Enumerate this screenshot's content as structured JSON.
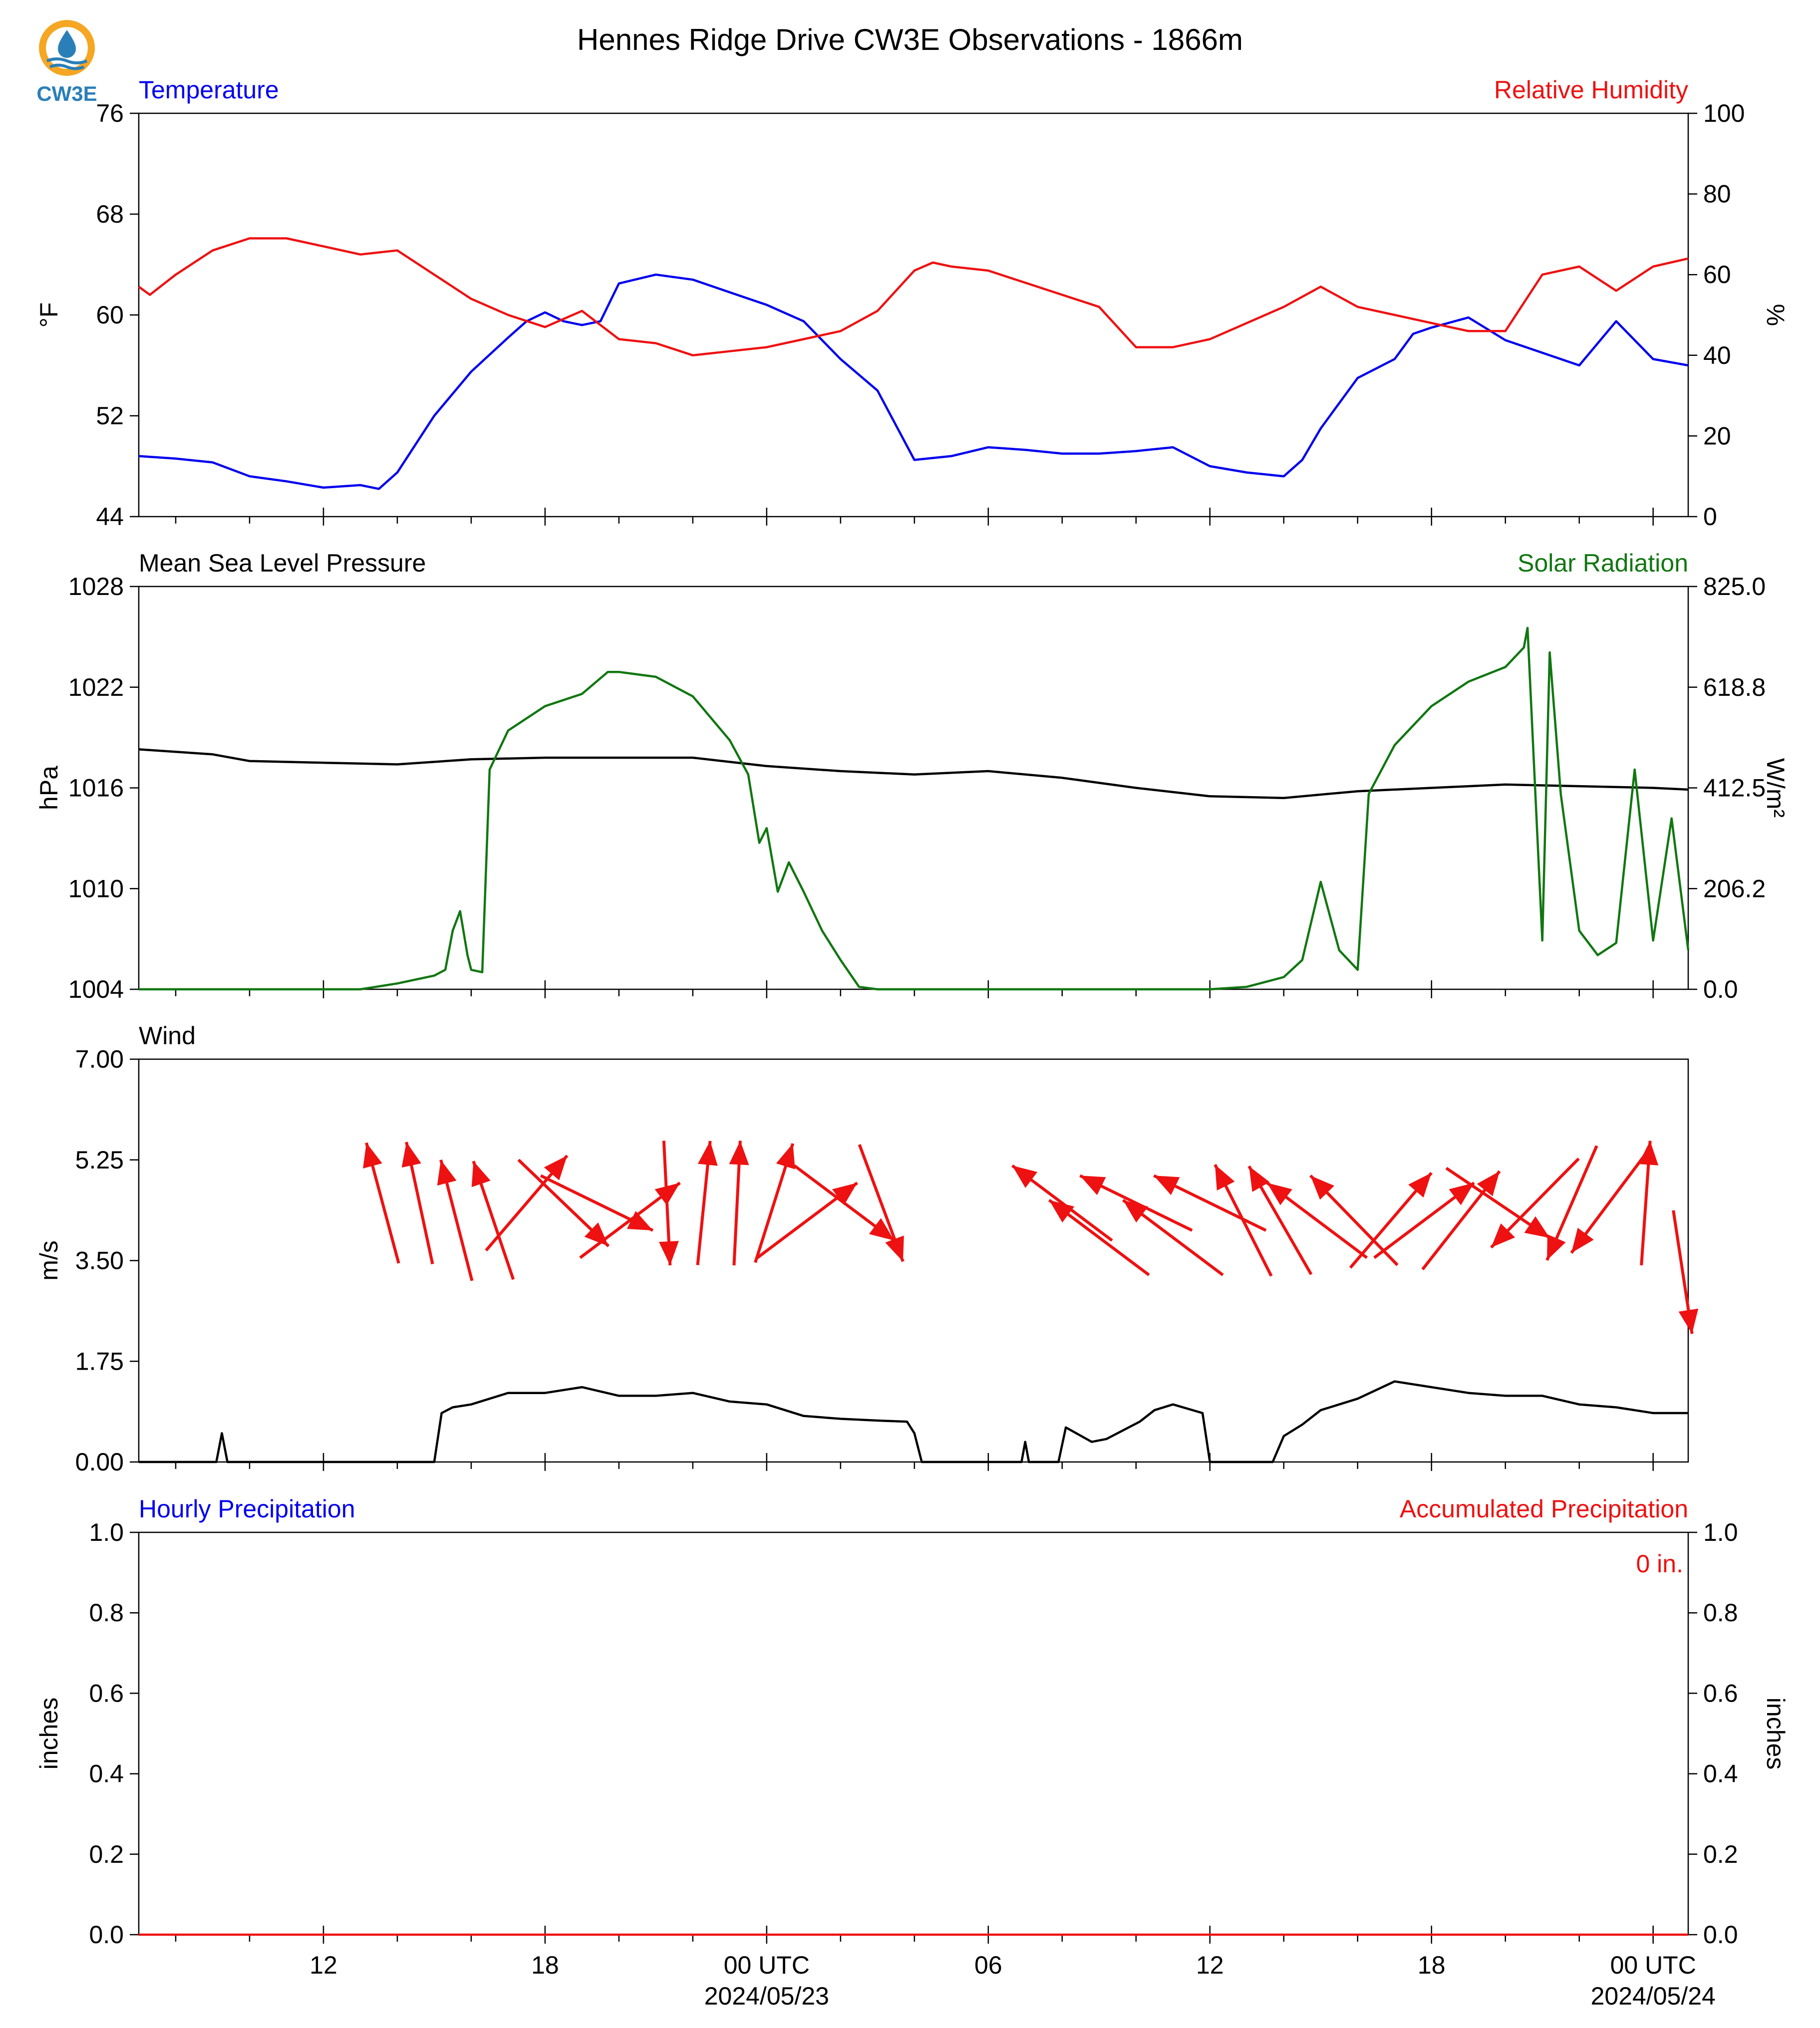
{
  "title": "Hennes Ridge Drive CW3E Observations - 1866m",
  "logo": {
    "text": "CW3E",
    "colors": {
      "ring": "#f5a623",
      "drop": "#2a7fb8",
      "waves": "#2a7fb8"
    }
  },
  "colors": {
    "blue": "#0000ee",
    "red": "#ee1111",
    "green": "#117711",
    "black": "#000000"
  },
  "x_axis": {
    "tick_labels": [
      "12",
      "18",
      "00 UTC",
      "06",
      "12",
      "18",
      "00 UTC"
    ],
    "tick_hours": [
      12,
      18,
      24,
      30,
      36,
      42,
      48
    ],
    "date_labels": [
      "2024/05/23",
      "2024/05/24"
    ],
    "date_hours": [
      24,
      48
    ],
    "minor_tick_hours": [
      8,
      10,
      14,
      16,
      20,
      22,
      26,
      28,
      32,
      34,
      38,
      40,
      44,
      46
    ],
    "range_hours": [
      7,
      48.95
    ],
    "note": "hours measured from 2024-05-22 00 UTC"
  },
  "chart_data": [
    {
      "type": "line",
      "panel": "temperature-humidity",
      "left_label": "Temperature",
      "right_label": "Relative Humidity",
      "ylabel": "°F",
      "ylabel_right": "%",
      "ylim": [
        44,
        76
      ],
      "yticks": [
        "44",
        "52",
        "60",
        "68",
        "76"
      ],
      "ylim_right": [
        0,
        100
      ],
      "yticks_right": [
        "0",
        "20",
        "40",
        "60",
        "80",
        "100"
      ],
      "series": [
        {
          "name": "Temperature",
          "axis": "left",
          "color": "#0000ee",
          "x": [
            7,
            8,
            9,
            10,
            11,
            12,
            13,
            13.5,
            14,
            15,
            16,
            17,
            17.5,
            18,
            18.5,
            19,
            19.5,
            20,
            21,
            22,
            23,
            24,
            25,
            26,
            27,
            28,
            29,
            30,
            31,
            32,
            33,
            34,
            35,
            36,
            37,
            38,
            38.5,
            39,
            40,
            41,
            41.5,
            42,
            43,
            44,
            45,
            46,
            47,
            48,
            48.95
          ],
          "values": [
            48.8,
            48.6,
            48.3,
            47.2,
            46.8,
            46.3,
            46.5,
            46.2,
            47.5,
            52,
            55.5,
            58.2,
            59.5,
            60.2,
            59.5,
            59.2,
            59.5,
            62.5,
            63.2,
            62.8,
            61.8,
            60.8,
            59.5,
            56.5,
            54,
            48.5,
            48.8,
            49.5,
            49.3,
            49,
            49,
            49.2,
            49.5,
            48,
            47.5,
            47.2,
            48.5,
            51,
            55,
            56.5,
            58.5,
            59,
            59.8,
            58,
            57,
            56,
            59.5,
            56.5,
            56
          ]
        },
        {
          "name": "Relative Humidity",
          "axis": "right",
          "color": "#ee1111",
          "x": [
            7,
            7.3,
            8,
            9,
            10,
            11,
            12,
            13,
            14,
            15,
            16,
            17,
            18,
            19,
            20,
            21,
            22,
            23,
            24,
            25,
            26,
            27,
            28,
            28.5,
            29,
            30,
            31,
            32,
            33,
            34,
            35,
            36,
            37,
            38,
            39,
            40,
            41,
            42,
            43,
            44,
            45,
            46,
            47,
            48,
            48.95
          ],
          "values": [
            57,
            55,
            60,
            66,
            69,
            69,
            67,
            65,
            66,
            60,
            54,
            50,
            47,
            51,
            44,
            43,
            40,
            41,
            42,
            44,
            46,
            51,
            61,
            63,
            62,
            61,
            58,
            55,
            52,
            42,
            42,
            44,
            48,
            52,
            57,
            52,
            50,
            48,
            46,
            46,
            60,
            62,
            56,
            62,
            64
          ]
        }
      ]
    },
    {
      "type": "line",
      "panel": "pressure-solar",
      "left_label": "Mean Sea Level Pressure",
      "right_label": "Solar Radiation",
      "ylabel": "hPa",
      "ylabel_right": "W/m²",
      "ylim": [
        1004,
        1028
      ],
      "yticks": [
        "1004",
        "1010",
        "1016",
        "1022",
        "1028"
      ],
      "ylim_right": [
        0,
        825
      ],
      "yticks_right": [
        "0.0",
        "206.2",
        "412.5",
        "618.8",
        "825.0"
      ],
      "series": [
        {
          "name": "Mean Sea Level Pressure",
          "axis": "left",
          "color": "#000000",
          "x": [
            7,
            9,
            10,
            12,
            14,
            16,
            18,
            20,
            22,
            24,
            26,
            28,
            30,
            32,
            34,
            36,
            38,
            40,
            42,
            44,
            46,
            48,
            48.95
          ],
          "values": [
            1018.3,
            1018.0,
            1017.6,
            1017.5,
            1017.4,
            1017.7,
            1017.8,
            1017.8,
            1017.8,
            1017.3,
            1017.0,
            1016.8,
            1017.0,
            1016.6,
            1016.0,
            1015.5,
            1015.4,
            1015.8,
            1016.0,
            1016.2,
            1016.1,
            1016.0,
            1015.9
          ]
        },
        {
          "name": "Solar Radiation",
          "axis": "right",
          "color": "#117711",
          "x": [
            7,
            13,
            14,
            15,
            15.3,
            15.5,
            15.7,
            15.9,
            16,
            16.3,
            16.5,
            17,
            18,
            19,
            19.7,
            20,
            21,
            22,
            23,
            23.5,
            23.8,
            24,
            24.3,
            24.6,
            25,
            25.5,
            26,
            26.5,
            27,
            36,
            37,
            38,
            38.5,
            39,
            39.5,
            40,
            40.3,
            41,
            42,
            43,
            44,
            44.5,
            44.6,
            45,
            45.2,
            45.5,
            46,
            46.5,
            47,
            47.5,
            48,
            48.5,
            48.95
          ],
          "values": [
            0,
            0,
            12,
            28,
            40,
            120,
            160,
            70,
            40,
            35,
            450,
            530,
            580,
            605,
            650,
            650,
            640,
            600,
            510,
            440,
            300,
            330,
            200,
            260,
            200,
            120,
            60,
            5,
            0,
            0,
            5,
            25,
            60,
            220,
            80,
            40,
            400,
            500,
            580,
            630,
            660,
            700,
            740,
            100,
            690,
            400,
            120,
            70,
            95,
            450,
            100,
            350,
            80
          ]
        }
      ]
    },
    {
      "type": "line",
      "panel": "wind",
      "left_label": "Wind",
      "ylabel": "m/s",
      "ylim": [
        0,
        7
      ],
      "yticks": [
        "0.00",
        "1.75",
        "3.50",
        "5.25",
        "7.00"
      ],
      "series": [
        {
          "name": "Wind",
          "axis": "left",
          "color": "#000000",
          "x": [
            7,
            9.1,
            9.25,
            9.4,
            15,
            15.2,
            15.5,
            16,
            17,
            18,
            19,
            20,
            21,
            22,
            23,
            24,
            25,
            26,
            27,
            27.8,
            28,
            28.2,
            30.9,
            31,
            31.1,
            31.9,
            32.1,
            32.8,
            33.2,
            33.5,
            34.1,
            34.5,
            35,
            35.8,
            36,
            37.7,
            38,
            38.5,
            39,
            40,
            41,
            42,
            43,
            44,
            45,
            46,
            47,
            48,
            48.95
          ],
          "values": [
            0,
            0,
            0.5,
            0,
            0,
            0.85,
            0.95,
            1.0,
            1.2,
            1.2,
            1.3,
            1.15,
            1.15,
            1.2,
            1.05,
            1.0,
            0.8,
            0.75,
            0.72,
            0.7,
            0.5,
            0,
            0,
            0.35,
            0,
            0,
            0.6,
            0.35,
            0.4,
            0.5,
            0.7,
            0.9,
            1.0,
            0.85,
            0,
            0,
            0.45,
            0.65,
            0.9,
            1.1,
            1.4,
            1.3,
            1.2,
            1.15,
            1.15,
            1.0,
            0.95,
            0.85,
            0.85
          ]
        }
      ],
      "wind_arrows": {
        "color": "#ee1111",
        "x": [
          13.6,
          14.6,
          15.6,
          16.6,
          17.5,
          18.5,
          19.4,
          20.3,
          21.3,
          22.3,
          23.2,
          24.2,
          25.1,
          26.1,
          27.1,
          32,
          33,
          34,
          35,
          36,
          36.9,
          37.9,
          38.9,
          39.9,
          40.9,
          41.8,
          42.8,
          43.8,
          44.8,
          45.8,
          46.8,
          47.8,
          48.8
        ],
        "u": [
          -0.26,
          -0.21,
          -0.25,
          -0.32,
          0.65,
          0.72,
          0.9,
          0.8,
          0.05,
          0.1,
          0.05,
          0.3,
          0.8,
          0.8,
          0.35,
          -0.8,
          -0.8,
          -0.9,
          -0.8,
          -0.9,
          -0.45,
          -0.5,
          -0.8,
          -0.7,
          0.65,
          0.8,
          0.62,
          0.83,
          -0.7,
          -0.4,
          -0.6,
          0.07,
          0.15
        ],
        "v": [
          0.97,
          0.98,
          0.97,
          0.95,
          0.76,
          -0.69,
          -0.44,
          0.6,
          -1.0,
          0.99,
          1.0,
          0.95,
          0.6,
          -0.6,
          -0.94,
          0.6,
          0.6,
          0.44,
          0.6,
          0.44,
          0.89,
          0.87,
          0.6,
          0.72,
          0.76,
          0.6,
          0.79,
          -0.56,
          -0.71,
          -0.92,
          -0.8,
          1.0,
          -0.99
        ],
        "length_mps": [
          4.5,
          4.5,
          4.2,
          4.2,
          4.5,
          4.5,
          4.5,
          4.2,
          4.5,
          4.5,
          4.5,
          4.5,
          4.2,
          4.5,
          4.5,
          4.5,
          3.9,
          4.5,
          3.9,
          4.5,
          4.2,
          4.2,
          4.2,
          4.2,
          4.2,
          4.2,
          4.2,
          4.5,
          4.5,
          4.5,
          4.5,
          4.5,
          3.3
        ]
      }
    },
    {
      "type": "line",
      "panel": "precipitation",
      "left_label": "Hourly Precipitation",
      "right_label": "Accumulated Precipitation",
      "ylabel": "inches",
      "ylabel_right": "inches",
      "ylim": [
        0,
        1
      ],
      "yticks": [
        "0.0",
        "0.2",
        "0.4",
        "0.6",
        "0.8",
        "1.0"
      ],
      "ylim_right": [
        0,
        1
      ],
      "yticks_right": [
        "0.0",
        "0.2",
        "0.4",
        "0.6",
        "0.8",
        "1.0"
      ],
      "annotation": "0 in.",
      "series": [
        {
          "name": "Accumulated Precipitation",
          "axis": "right",
          "color": "#ee1111",
          "x": [
            7,
            48.95
          ],
          "values": [
            0,
            0
          ]
        }
      ]
    }
  ]
}
